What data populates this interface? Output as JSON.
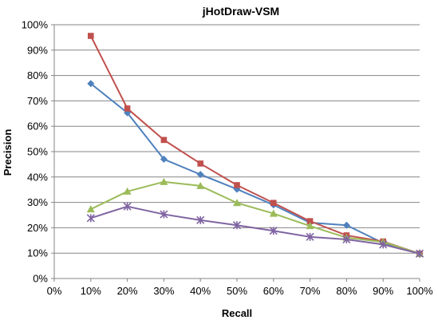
{
  "chart_data": {
    "type": "line",
    "title": "jHotDraw-VSM",
    "xlabel": "Recall",
    "ylabel": "Precision",
    "x_ticks": [
      "0%",
      "10%",
      "20%",
      "30%",
      "40%",
      "50%",
      "60%",
      "70%",
      "80%",
      "90%",
      "100%"
    ],
    "y_ticks": [
      "0%",
      "10%",
      "20%",
      "30%",
      "40%",
      "50%",
      "60%",
      "70%",
      "80%",
      "90%",
      "100%"
    ],
    "xlim": [
      0,
      100
    ],
    "ylim": [
      0,
      100
    ],
    "grid": "horizontal",
    "legend": "none",
    "x": [
      10,
      20,
      30,
      40,
      50,
      60,
      70,
      80,
      90,
      100
    ],
    "series": [
      {
        "color": "#4F81BD",
        "marker": "diamond",
        "values": [
          76.8,
          65.3,
          47.0,
          41.0,
          35.2,
          29.0,
          22.0,
          21.0,
          14.0,
          9.8
        ]
      },
      {
        "color": "#C0504D",
        "marker": "square",
        "values": [
          95.6,
          67.0,
          54.6,
          45.3,
          36.8,
          29.8,
          22.6,
          17.0,
          14.6,
          9.8
        ]
      },
      {
        "color": "#9BBB59",
        "marker": "triangle",
        "values": [
          27.3,
          34.3,
          38.1,
          36.5,
          29.8,
          25.6,
          20.7,
          16.1,
          14.4,
          9.8
        ]
      },
      {
        "color": "#8064A2",
        "marker": "star",
        "values": [
          23.8,
          28.4,
          25.3,
          23.0,
          21.0,
          18.8,
          16.4,
          15.4,
          13.4,
          9.8
        ]
      }
    ]
  }
}
